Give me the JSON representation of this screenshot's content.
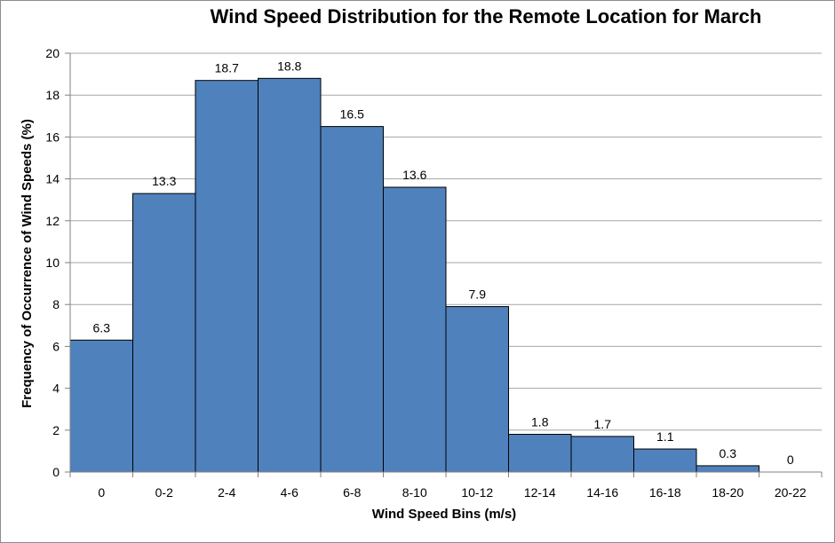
{
  "chart_data": {
    "type": "bar",
    "title": "Wind Speed Distribution for the Remote Location for March",
    "xlabel": "Wind Speed Bins (m/s)",
    "ylabel": "Frequency of Occurrence of Wind Speeds (%)",
    "categories": [
      "0",
      "0-2",
      "2-4",
      "4-6",
      "6-8",
      "8-10",
      "10-12",
      "12-14",
      "14-16",
      "16-18",
      "18-20",
      "20-22"
    ],
    "values": [
      6.3,
      13.3,
      18.7,
      18.8,
      16.5,
      13.6,
      7.9,
      1.8,
      1.7,
      1.1,
      0.3,
      0
    ],
    "data_labels": [
      "6.3",
      "13.3",
      "18.7",
      "18.8",
      "16.5",
      "13.6",
      "7.9",
      "1.8",
      "1.7",
      "1.1",
      "0.3",
      "0"
    ],
    "ylim": [
      0,
      20
    ],
    "yticks": [
      "0",
      "2",
      "4",
      "6",
      "8",
      "10",
      "12",
      "14",
      "16",
      "18",
      "20"
    ],
    "grid": true,
    "legend": "none",
    "colors": {
      "bar_fill": "#4f81bd",
      "bar_stroke": "#000000",
      "grid": "#a6a6a6",
      "axis": "#808080"
    }
  }
}
